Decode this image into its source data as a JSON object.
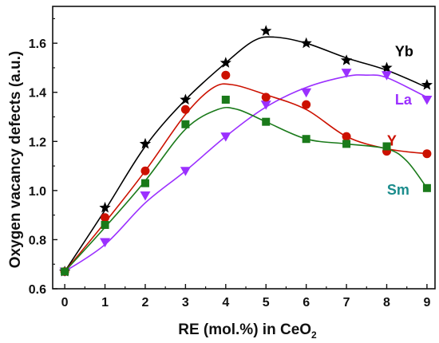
{
  "chart_data": {
    "type": "line",
    "xlabel": "RE (mol.%) in CeO",
    "xlabel_sub": "2",
    "ylabel": "Oxygen vacancy defects (a.u.)",
    "xlim": [
      -0.3,
      9.2
    ],
    "ylim": [
      0.6,
      1.75
    ],
    "x_ticks": [
      "0",
      "1",
      "2",
      "3",
      "4",
      "5",
      "6",
      "7",
      "8",
      "9"
    ],
    "y_ticks": [
      "0.6",
      "0.8",
      "1.0",
      "1.2",
      "1.4",
      "1.6"
    ],
    "grid": false,
    "legend": "inline labels at right end of each series",
    "x": [
      0,
      1,
      2,
      3,
      4,
      5,
      6,
      7,
      8,
      9
    ],
    "series": [
      {
        "name": "Yb",
        "marker": "star",
        "color": "#000000",
        "label_color": "#000000",
        "values": [
          0.67,
          0.93,
          1.19,
          1.37,
          1.52,
          1.65,
          1.6,
          1.53,
          1.5,
          1.43
        ],
        "curve": [
          [
            0,
            0.67
          ],
          [
            1,
            0.92
          ],
          [
            2,
            1.18
          ],
          [
            3,
            1.37
          ],
          [
            4,
            1.52
          ],
          [
            4.7,
            1.61
          ],
          [
            5.2,
            1.625
          ],
          [
            6,
            1.6
          ],
          [
            7,
            1.54
          ],
          [
            8,
            1.49
          ],
          [
            9,
            1.42
          ]
        ]
      },
      {
        "name": "La",
        "marker": "triangle-down",
        "color": "#9b30ff",
        "label_color": "#9b30ff",
        "values": [
          0.67,
          0.79,
          0.98,
          1.08,
          1.22,
          1.35,
          1.4,
          1.48,
          1.47,
          1.37
        ],
        "curve": [
          [
            0,
            0.67
          ],
          [
            1,
            0.78
          ],
          [
            2,
            0.95
          ],
          [
            3,
            1.08
          ],
          [
            4,
            1.22
          ],
          [
            5,
            1.34
          ],
          [
            6,
            1.42
          ],
          [
            7,
            1.465
          ],
          [
            7.5,
            1.47
          ],
          [
            8,
            1.46
          ],
          [
            9,
            1.38
          ]
        ]
      },
      {
        "name": "Y",
        "marker": "circle",
        "color": "#cc1100",
        "label_color": "#cc1100",
        "values": [
          0.67,
          0.89,
          1.08,
          1.33,
          1.47,
          1.38,
          1.35,
          1.22,
          1.16,
          1.15
        ],
        "curve": [
          [
            0,
            0.67
          ],
          [
            1,
            0.87
          ],
          [
            2,
            1.08
          ],
          [
            3,
            1.31
          ],
          [
            3.7,
            1.42
          ],
          [
            4.2,
            1.43
          ],
          [
            5,
            1.39
          ],
          [
            6,
            1.33
          ],
          [
            7,
            1.22
          ],
          [
            8,
            1.17
          ],
          [
            9,
            1.15
          ]
        ]
      },
      {
        "name": "Sm",
        "marker": "square",
        "color": "#1a7a1a",
        "label_color": "#1a8c8c",
        "values": [
          0.67,
          0.86,
          1.03,
          1.27,
          1.37,
          1.28,
          1.21,
          1.19,
          1.18,
          1.01
        ],
        "curve": [
          [
            0,
            0.67
          ],
          [
            1,
            0.85
          ],
          [
            2,
            1.04
          ],
          [
            3,
            1.25
          ],
          [
            3.8,
            1.33
          ],
          [
            4.3,
            1.33
          ],
          [
            5,
            1.28
          ],
          [
            6,
            1.21
          ],
          [
            7,
            1.19
          ],
          [
            8,
            1.17
          ],
          [
            8.5,
            1.12
          ],
          [
            9,
            1.01
          ]
        ]
      }
    ]
  }
}
